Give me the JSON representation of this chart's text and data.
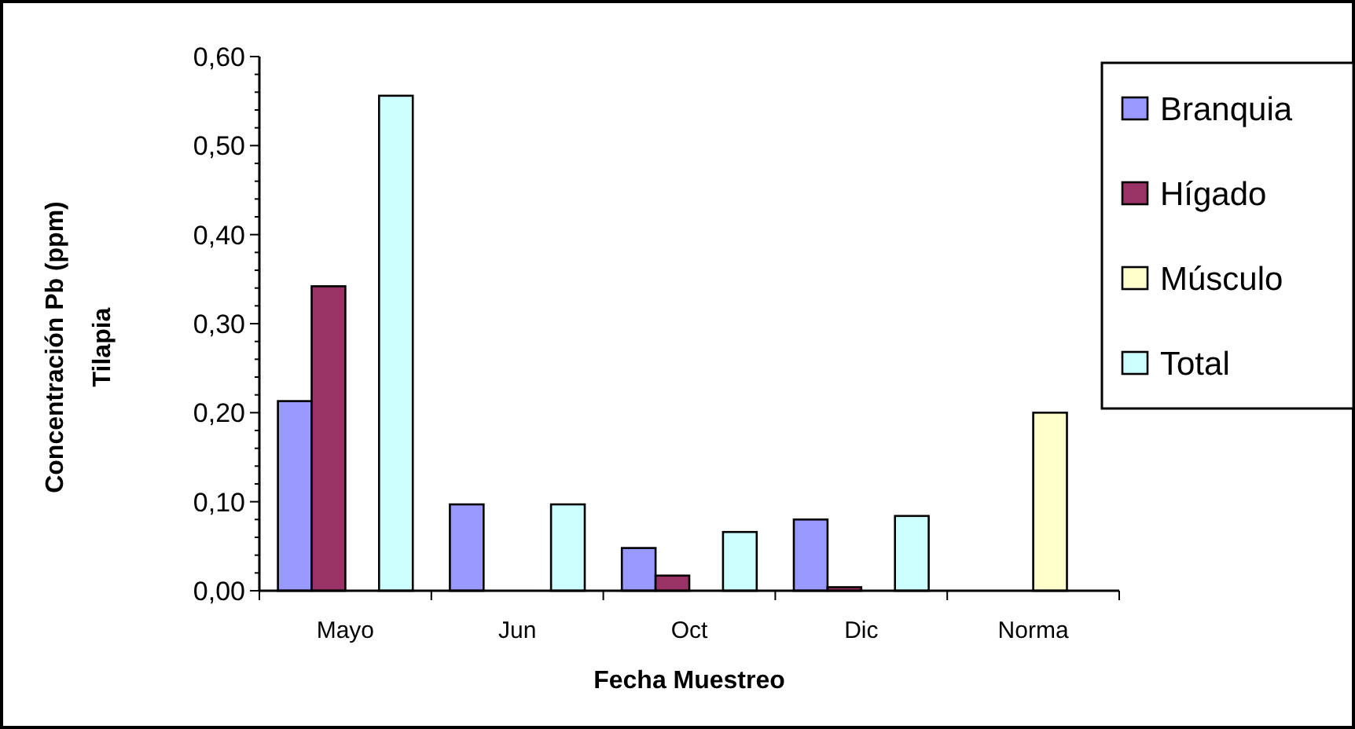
{
  "chart_data": {
    "type": "bar",
    "xlabel": "Fecha Muestreo",
    "ylabel": "Concentración Pb (ppm)\nTilapia",
    "categories": [
      "Mayo",
      "Jun",
      "Oct",
      "Dic",
      "Norma"
    ],
    "series": [
      {
        "name": "Branquia",
        "color": "#9999ff",
        "values": [
          0.213,
          0.097,
          0.048,
          0.08,
          null
        ]
      },
      {
        "name": "Hígado",
        "color": "#993366",
        "values": [
          0.342,
          null,
          0.017,
          0.004,
          null
        ]
      },
      {
        "name": "Músculo",
        "color": "#ffffcc",
        "values": [
          null,
          null,
          null,
          null,
          0.2
        ]
      },
      {
        "name": "Total",
        "color": "#ccffff",
        "values": [
          0.556,
          0.097,
          0.066,
          0.084,
          null
        ]
      }
    ],
    "ylim": [
      0,
      0.6
    ],
    "yticks": [
      {
        "value": 0,
        "label": "0,00"
      },
      {
        "value": 0.02,
        "label": null
      },
      {
        "value": 0.04,
        "label": null
      },
      {
        "value": 0.06,
        "label": null
      },
      {
        "value": 0.08,
        "label": null
      },
      {
        "value": 0.1,
        "label": "0,10"
      },
      {
        "value": 0.12,
        "label": null
      },
      {
        "value": 0.14,
        "label": null
      },
      {
        "value": 0.16,
        "label": null
      },
      {
        "value": 0.18,
        "label": null
      },
      {
        "value": 0.2,
        "label": "0,20"
      },
      {
        "value": 0.22,
        "label": null
      },
      {
        "value": 0.24,
        "label": null
      },
      {
        "value": 0.26,
        "label": null
      },
      {
        "value": 0.28,
        "label": null
      },
      {
        "value": 0.3,
        "label": "0,30"
      },
      {
        "value": 0.32,
        "label": null
      },
      {
        "value": 0.34,
        "label": null
      },
      {
        "value": 0.36,
        "label": null
      },
      {
        "value": 0.38,
        "label": null
      },
      {
        "value": 0.4,
        "label": "0,40"
      },
      {
        "value": 0.42,
        "label": null
      },
      {
        "value": 0.44,
        "label": null
      },
      {
        "value": 0.46,
        "label": null
      },
      {
        "value": 0.48,
        "label": null
      },
      {
        "value": 0.5,
        "label": "0,50"
      },
      {
        "value": 0.52,
        "label": null
      },
      {
        "value": 0.54,
        "label": null
      },
      {
        "value": 0.56,
        "label": null
      },
      {
        "value": 0.58,
        "label": null
      },
      {
        "value": 0.6,
        "label": "0,60"
      }
    ],
    "grid": false,
    "legend": "right"
  }
}
